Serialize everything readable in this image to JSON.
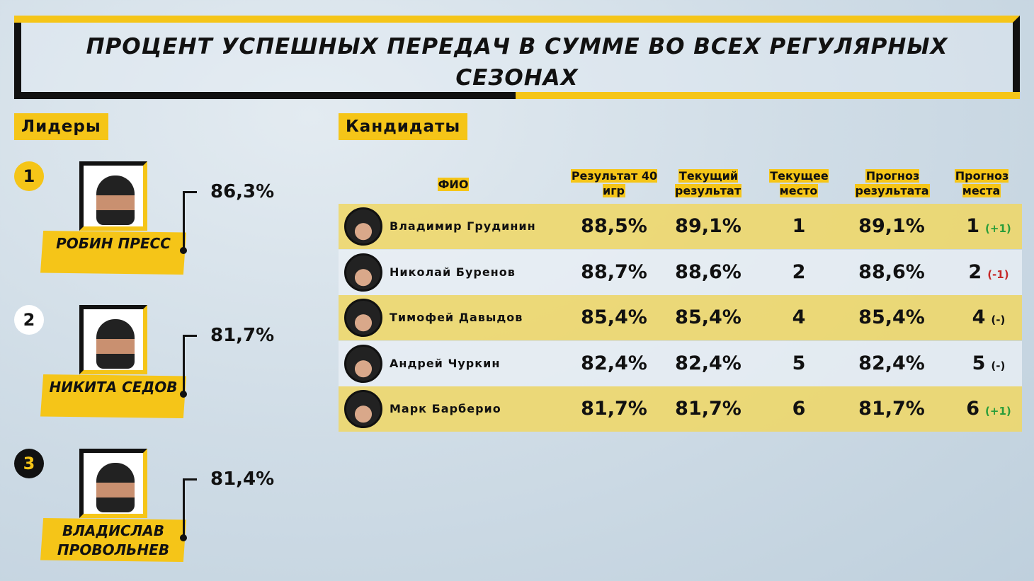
{
  "title": "Процент успешных передач в сумме во всех регулярных сезонах",
  "leaders_label": "Лидеры",
  "candidates_label": "Кандидаты",
  "leaders": [
    {
      "rank": "1",
      "name": "Робин Пресс",
      "value": "86,3%"
    },
    {
      "rank": "2",
      "name": "Никита Седов",
      "value": "81,7%"
    },
    {
      "rank": "3",
      "name": "Владислав Провольнев",
      "value": "81,4%"
    }
  ],
  "headers": {
    "name": "ФИО",
    "res40": "Результат 40 игр",
    "cur": "Текущий результат",
    "place": "Текущее место",
    "fres": "Прогноз результата",
    "fplace": "Прогноз места"
  },
  "rows": [
    {
      "name": "Владимир Грудинин",
      "res40": "88,5%",
      "cur": "89,1%",
      "place": "1",
      "fres": "89,1%",
      "fplace": "1",
      "delta": "(+1)"
    },
    {
      "name": "Николай Буренов",
      "res40": "88,7%",
      "cur": "88,6%",
      "place": "2",
      "fres": "88,6%",
      "fplace": "2",
      "delta": "(-1)"
    },
    {
      "name": "Тимофей Давыдов",
      "res40": "85,4%",
      "cur": "85,4%",
      "place": "4",
      "fres": "85,4%",
      "fplace": "4",
      "delta": "(-)"
    },
    {
      "name": "Андрей Чуркин",
      "res40": "82,4%",
      "cur": "82,4%",
      "place": "5",
      "fres": "82,4%",
      "fplace": "5",
      "delta": "(-)"
    },
    {
      "name": "Марк Барберио",
      "res40": "81,7%",
      "cur": "81,7%",
      "place": "6",
      "fres": "81,7%",
      "fplace": "6",
      "delta": "(+1)"
    }
  ],
  "colors": {
    "accent": "#f5c518",
    "up": "#2a9d3a",
    "down": "#c62828",
    "neutral": "#111111"
  }
}
